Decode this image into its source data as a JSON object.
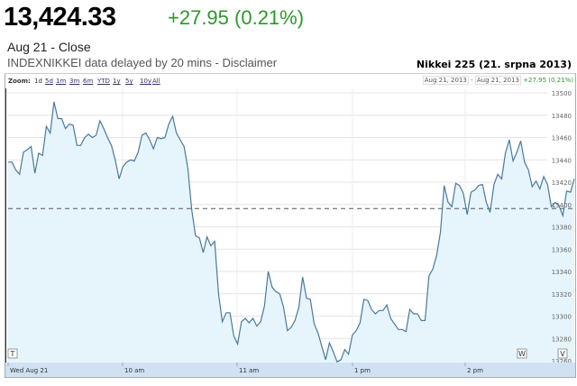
{
  "quote": {
    "price": "13,424.33",
    "change": "+27.95 (0.21%)",
    "close_label": "Aug 21 - Close",
    "delay_text": "INDEXNIKKEI data delayed by 20 mins - Disclaimer"
  },
  "chart_title": "Nikkei 225 (21. srpna 2013)",
  "toolbar": {
    "zoom_label": "Zoom:",
    "zoom_options": [
      "1d",
      "5d",
      "1m",
      "3m",
      "6m",
      "YTD",
      "1y",
      "5y",
      "10y",
      "All"
    ],
    "selected": "1d",
    "range_from": "Aug 21, 2013",
    "range_sep": "-",
    "range_to": "Aug 21, 2013",
    "range_change": "+27.95 (0.21%)"
  },
  "markers": [
    "T",
    "W",
    "V"
  ],
  "colors": {
    "line": "#4a7a9a",
    "fill": "#e6f4fc",
    "positive": "#2a9a2a",
    "axis_band": "#cfe1f3"
  },
  "chart_data": {
    "type": "area",
    "x_tick_labels": [
      "Wed Aug 21",
      "10 am",
      "11 am",
      "1 pm",
      "2 pm"
    ],
    "y_ticks": [
      13260,
      13280,
      13300,
      13320,
      13340,
      13360,
      13380,
      13400,
      13420,
      13440,
      13460,
      13480,
      13500
    ],
    "ylim": [
      13260,
      13500
    ],
    "previous_close": 13396.38,
    "grid": true,
    "values": [
      13438,
      13438,
      13431,
      13427,
      13447,
      13449,
      13452,
      13428,
      13446,
      13444,
      13470,
      13464,
      13492,
      13477,
      13477,
      13468,
      13472,
      13471,
      13453,
      13453,
      13460,
      13463,
      13460,
      13462,
      13475,
      13468,
      13460,
      13453,
      13440,
      13423,
      13434,
      13438,
      13440,
      13439,
      13447,
      13462,
      13464,
      13458,
      13450,
      13460,
      13459,
      13460,
      13472,
      13479,
      13464,
      13458,
      13452,
      13432,
      13395,
      13372,
      13370,
      13357,
      13371,
      13363,
      13367,
      13320,
      13295,
      13303,
      13303,
      13282,
      13275,
      13295,
      13298,
      13294,
      13298,
      13291,
      13295,
      13309,
      13340,
      13326,
      13322,
      13320,
      13308,
      13287,
      13290,
      13296,
      13308,
      13335,
      13316,
      13315,
      13293,
      13285,
      13273,
      13261,
      13276,
      13268,
      13259,
      13261,
      13270,
      13266,
      13283,
      13287,
      13294,
      13315,
      13314,
      13306,
      13302,
      13305,
      13305,
      13310,
      13298,
      13293,
      13288,
      13288,
      13286,
      13306,
      13302,
      13302,
      13296,
      13296,
      13336,
      13342,
      13354,
      13375,
      13417,
      13402,
      13398,
      13419,
      13417,
      13410,
      13391,
      13411,
      13413,
      13417,
      13418,
      13402,
      13393,
      13418,
      13427,
      13423,
      13446,
      13458,
      13439,
      13447,
      13457,
      13438,
      13431,
      13416,
      13421,
      13414,
      13425,
      13418,
      13398,
      13402,
      13399,
      13390,
      13412,
      13411,
      13423
    ]
  }
}
